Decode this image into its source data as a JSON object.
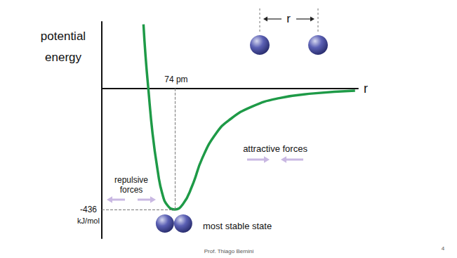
{
  "chart_data": {
    "type": "line",
    "x_label": "r",
    "y_label": "potential energy",
    "x": [
      42.3,
      44.4,
      47.2,
      51.5,
      56.4,
      61.3,
      67,
      74,
      82.5,
      91.6,
      102,
      116,
      130,
      152,
      180,
      215,
      257
    ],
    "values": [
      231,
      117,
      0,
      -162,
      -289,
      -378,
      -423,
      -436,
      -416,
      -352,
      -251,
      -162,
      -112,
      -66,
      -35,
      -18,
      -8
    ],
    "color": "#1e9a47",
    "xlim": [
      0,
      260
    ],
    "ylim": [
      -540,
      240
    ],
    "tick_labels": false,
    "grid": false,
    "equilibrium": {
      "r": 74,
      "r_label": "74 pm",
      "energy": -436,
      "energy_label": "-436",
      "energy_unit": "kJ/mol"
    },
    "annotations": {
      "repulsive": "repulsive forces",
      "attractive": "attractive forces",
      "stable": "most stable state",
      "separation": "r"
    }
  },
  "footer": {
    "author": "Prof. Thiago Bernini",
    "page": "4"
  }
}
